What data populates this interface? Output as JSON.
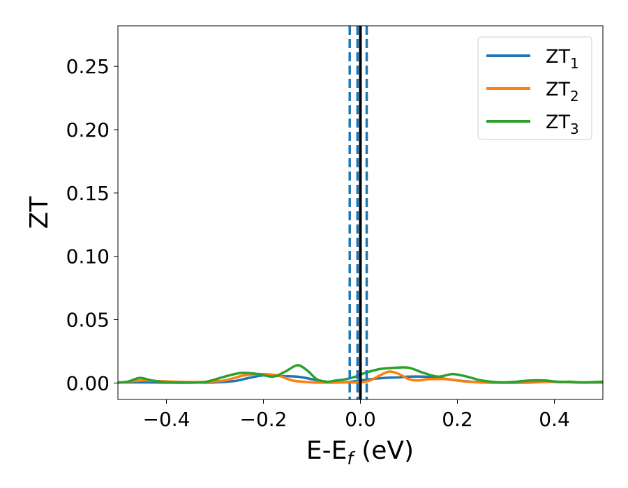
{
  "chart_data": {
    "type": "line",
    "xlabel": "E-E",
    "xlabel_sub": "f",
    "xlabel_unit": "(eV)",
    "ylabel": "ZT",
    "xlim": [
      -0.5,
      0.5
    ],
    "ylim": [
      -0.013,
      0.282
    ],
    "x_ticks": [
      -0.4,
      -0.2,
      0.0,
      0.2,
      0.4
    ],
    "x_tick_labels": [
      "−0.4",
      "−0.2",
      "0.0",
      "0.2",
      "0.4"
    ],
    "y_ticks": [
      0.0,
      0.05,
      0.1,
      0.15,
      0.2,
      0.25
    ],
    "y_tick_labels": [
      "0.00",
      "0.05",
      "0.10",
      "0.15",
      "0.20",
      "0.25"
    ],
    "grid": false,
    "legend_position": "top-right",
    "vertical_lines": [
      {
        "x": -0.022,
        "style": "dashed",
        "color": "#1f77b4"
      },
      {
        "x": -0.006,
        "style": "dashed",
        "color": "#1f77b4"
      },
      {
        "x": 0.013,
        "style": "dashed",
        "color": "#1f77b4"
      },
      {
        "x": 0.0,
        "style": "solid",
        "color": "#000000"
      }
    ],
    "series": [
      {
        "name": "ZT",
        "name_sub": "1",
        "color": "#1f77b4",
        "x": [
          -0.5,
          -0.45,
          -0.4,
          -0.35,
          -0.3,
          -0.26,
          -0.23,
          -0.2,
          -0.17,
          -0.13,
          -0.1,
          -0.07,
          -0.04,
          -0.02,
          0.0,
          0.02,
          0.05,
          0.08,
          0.1,
          0.13,
          0.16,
          0.2,
          0.25,
          0.3,
          0.35,
          0.4,
          0.45,
          0.5
        ],
        "y": [
          0.0005,
          0.0005,
          0.0003,
          0.0003,
          0.0005,
          0.0015,
          0.004,
          0.006,
          0.0055,
          0.005,
          0.003,
          0.001,
          0.0005,
          0.001,
          0.002,
          0.003,
          0.004,
          0.0045,
          0.005,
          0.005,
          0.004,
          0.002,
          0.0005,
          0.0003,
          0.0005,
          0.001,
          0.0005,
          0.0003
        ]
      },
      {
        "name": "ZT",
        "name_sub": "2",
        "color": "#ff7f0e",
        "x": [
          -0.5,
          -0.45,
          -0.42,
          -0.38,
          -0.33,
          -0.28,
          -0.24,
          -0.2,
          -0.17,
          -0.14,
          -0.1,
          -0.07,
          -0.04,
          -0.02,
          0.0,
          0.02,
          0.04,
          0.06,
          0.08,
          0.1,
          0.12,
          0.14,
          0.18,
          0.22,
          0.28,
          0.34,
          0.4,
          0.45,
          0.5
        ],
        "y": [
          0.0003,
          0.002,
          0.0015,
          0.001,
          0.0008,
          0.002,
          0.006,
          0.007,
          0.006,
          0.002,
          0.0005,
          0.0003,
          0.0004,
          0.0005,
          0.0005,
          0.002,
          0.006,
          0.009,
          0.007,
          0.003,
          0.002,
          0.003,
          0.003,
          0.001,
          0.0005,
          0.001,
          0.0008,
          0.0003,
          0.0003
        ]
      },
      {
        "name": "ZT",
        "name_sub": "3",
        "color": "#2ca02c",
        "x": [
          -0.5,
          -0.48,
          -0.455,
          -0.43,
          -0.4,
          -0.36,
          -0.32,
          -0.28,
          -0.245,
          -0.21,
          -0.18,
          -0.155,
          -0.13,
          -0.11,
          -0.09,
          -0.07,
          -0.05,
          -0.03,
          -0.01,
          0.01,
          0.04,
          0.07,
          0.1,
          0.13,
          0.16,
          0.19,
          0.22,
          0.25,
          0.29,
          0.32,
          0.35,
          0.38,
          0.41,
          0.43,
          0.46,
          0.5
        ],
        "y": [
          0.0003,
          0.001,
          0.004,
          0.002,
          0.0005,
          0.0003,
          0.0008,
          0.005,
          0.008,
          0.007,
          0.005,
          0.009,
          0.014,
          0.01,
          0.003,
          0.001,
          0.002,
          0.003,
          0.005,
          0.008,
          0.011,
          0.012,
          0.012,
          0.008,
          0.005,
          0.007,
          0.005,
          0.002,
          0.0005,
          0.001,
          0.002,
          0.002,
          0.0008,
          0.001,
          0.0005,
          0.001
        ]
      }
    ]
  }
}
